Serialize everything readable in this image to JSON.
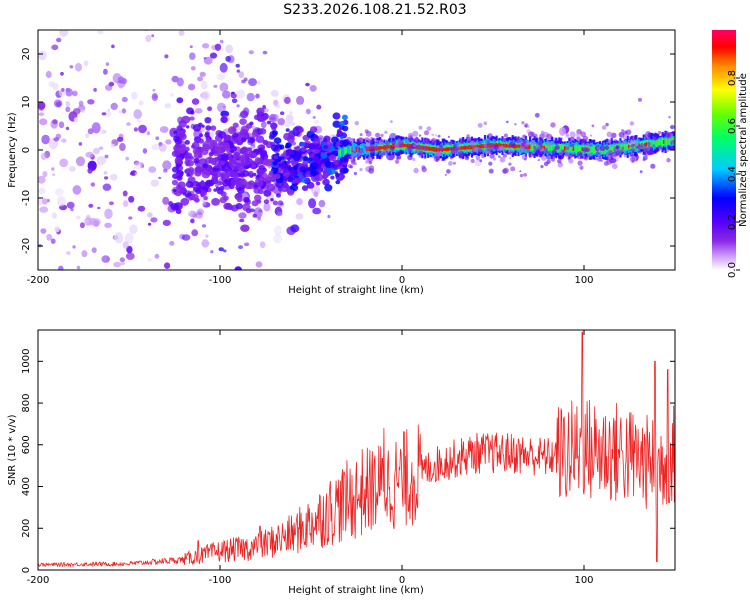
{
  "title": "S233.2026.108.21.52.R03",
  "chart_data": [
    {
      "type": "heatmap",
      "name": "spectrogram",
      "title": "S233.2026.108.21.52.R03",
      "xlabel": "Height of straight line (km)",
      "ylabel": "Frequency (Hz)",
      "xlim": [
        -200,
        150
      ],
      "ylim": [
        -25,
        25
      ],
      "xticks": [
        -200,
        -100,
        0,
        100
      ],
      "xtick_labels": [
        "-200",
        "-100",
        "0",
        "100"
      ],
      "yticks": [
        -20,
        -10,
        0,
        10,
        20
      ],
      "ytick_labels": [
        "-20",
        "-10",
        "0",
        "10",
        "20"
      ],
      "colorbar": {
        "label": "Normalized spectral amplitude",
        "range": [
          0,
          1
        ],
        "ticks": [
          0.0,
          0.2,
          0.4,
          0.6,
          0.8
        ],
        "tick_labels": [
          "0.0",
          "0.2",
          "0.4",
          "0.6",
          "0.8"
        ],
        "colors": [
          "#ffffff",
          "#cc99ff",
          "#8a2be2",
          "#5500ff",
          "#0000ff",
          "#00ccff",
          "#00ff66",
          "#66ff00",
          "#ffff00",
          "#ff8800",
          "#ff0000",
          "#ff0066"
        ]
      },
      "centerline": [
        {
          "x": -60,
          "y": -4
        },
        {
          "x": -45,
          "y": -2
        },
        {
          "x": -30,
          "y": 0
        },
        {
          "x": -15,
          "y": 0.3
        },
        {
          "x": 0,
          "y": 1
        },
        {
          "x": 20,
          "y": 0
        },
        {
          "x": 50,
          "y": 1
        },
        {
          "x": 80,
          "y": 0.5
        },
        {
          "x": 110,
          "y": 0
        },
        {
          "x": 150,
          "y": 2
        }
      ]
    },
    {
      "type": "line",
      "name": "snr",
      "xlabel": "Height of straight line (km)",
      "ylabel": "SNR (10 * v/v)",
      "xlim": [
        -200,
        150
      ],
      "ylim": [
        0,
        1150
      ],
      "xticks": [
        -200,
        -100,
        0,
        100
      ],
      "xtick_labels": [
        "-200",
        "-100",
        "0",
        "100"
      ],
      "yticks": [
        0,
        200,
        400,
        600,
        800,
        1000
      ],
      "ytick_labels": [
        "0",
        "200",
        "400",
        "600",
        "800",
        "1000"
      ],
      "color": "#ee2222",
      "envelope": [
        {
          "x": -200,
          "y": 25
        },
        {
          "x": -150,
          "y": 30
        },
        {
          "x": -120,
          "y": 50
        },
        {
          "x": -100,
          "y": 90
        },
        {
          "x": -80,
          "y": 110
        },
        {
          "x": -60,
          "y": 170
        },
        {
          "x": -40,
          "y": 280
        },
        {
          "x": -20,
          "y": 380
        },
        {
          "x": 0,
          "y": 430
        },
        {
          "x": 20,
          "y": 510
        },
        {
          "x": 40,
          "y": 560
        },
        {
          "x": 60,
          "y": 560
        },
        {
          "x": 80,
          "y": 540
        },
        {
          "x": 100,
          "y": 580
        },
        {
          "x": 120,
          "y": 560
        },
        {
          "x": 140,
          "y": 500
        },
        {
          "x": 150,
          "y": 560
        }
      ],
      "peaks": [
        {
          "x": -10,
          "y": 680
        },
        {
          "x": 99,
          "y": 1140
        },
        {
          "x": 139,
          "y": 1000
        },
        {
          "x": 146,
          "y": 960
        },
        {
          "x": 140,
          "y": 40
        },
        {
          "x": -112,
          "y": 140
        },
        {
          "x": -78,
          "y": 210
        }
      ]
    }
  ]
}
